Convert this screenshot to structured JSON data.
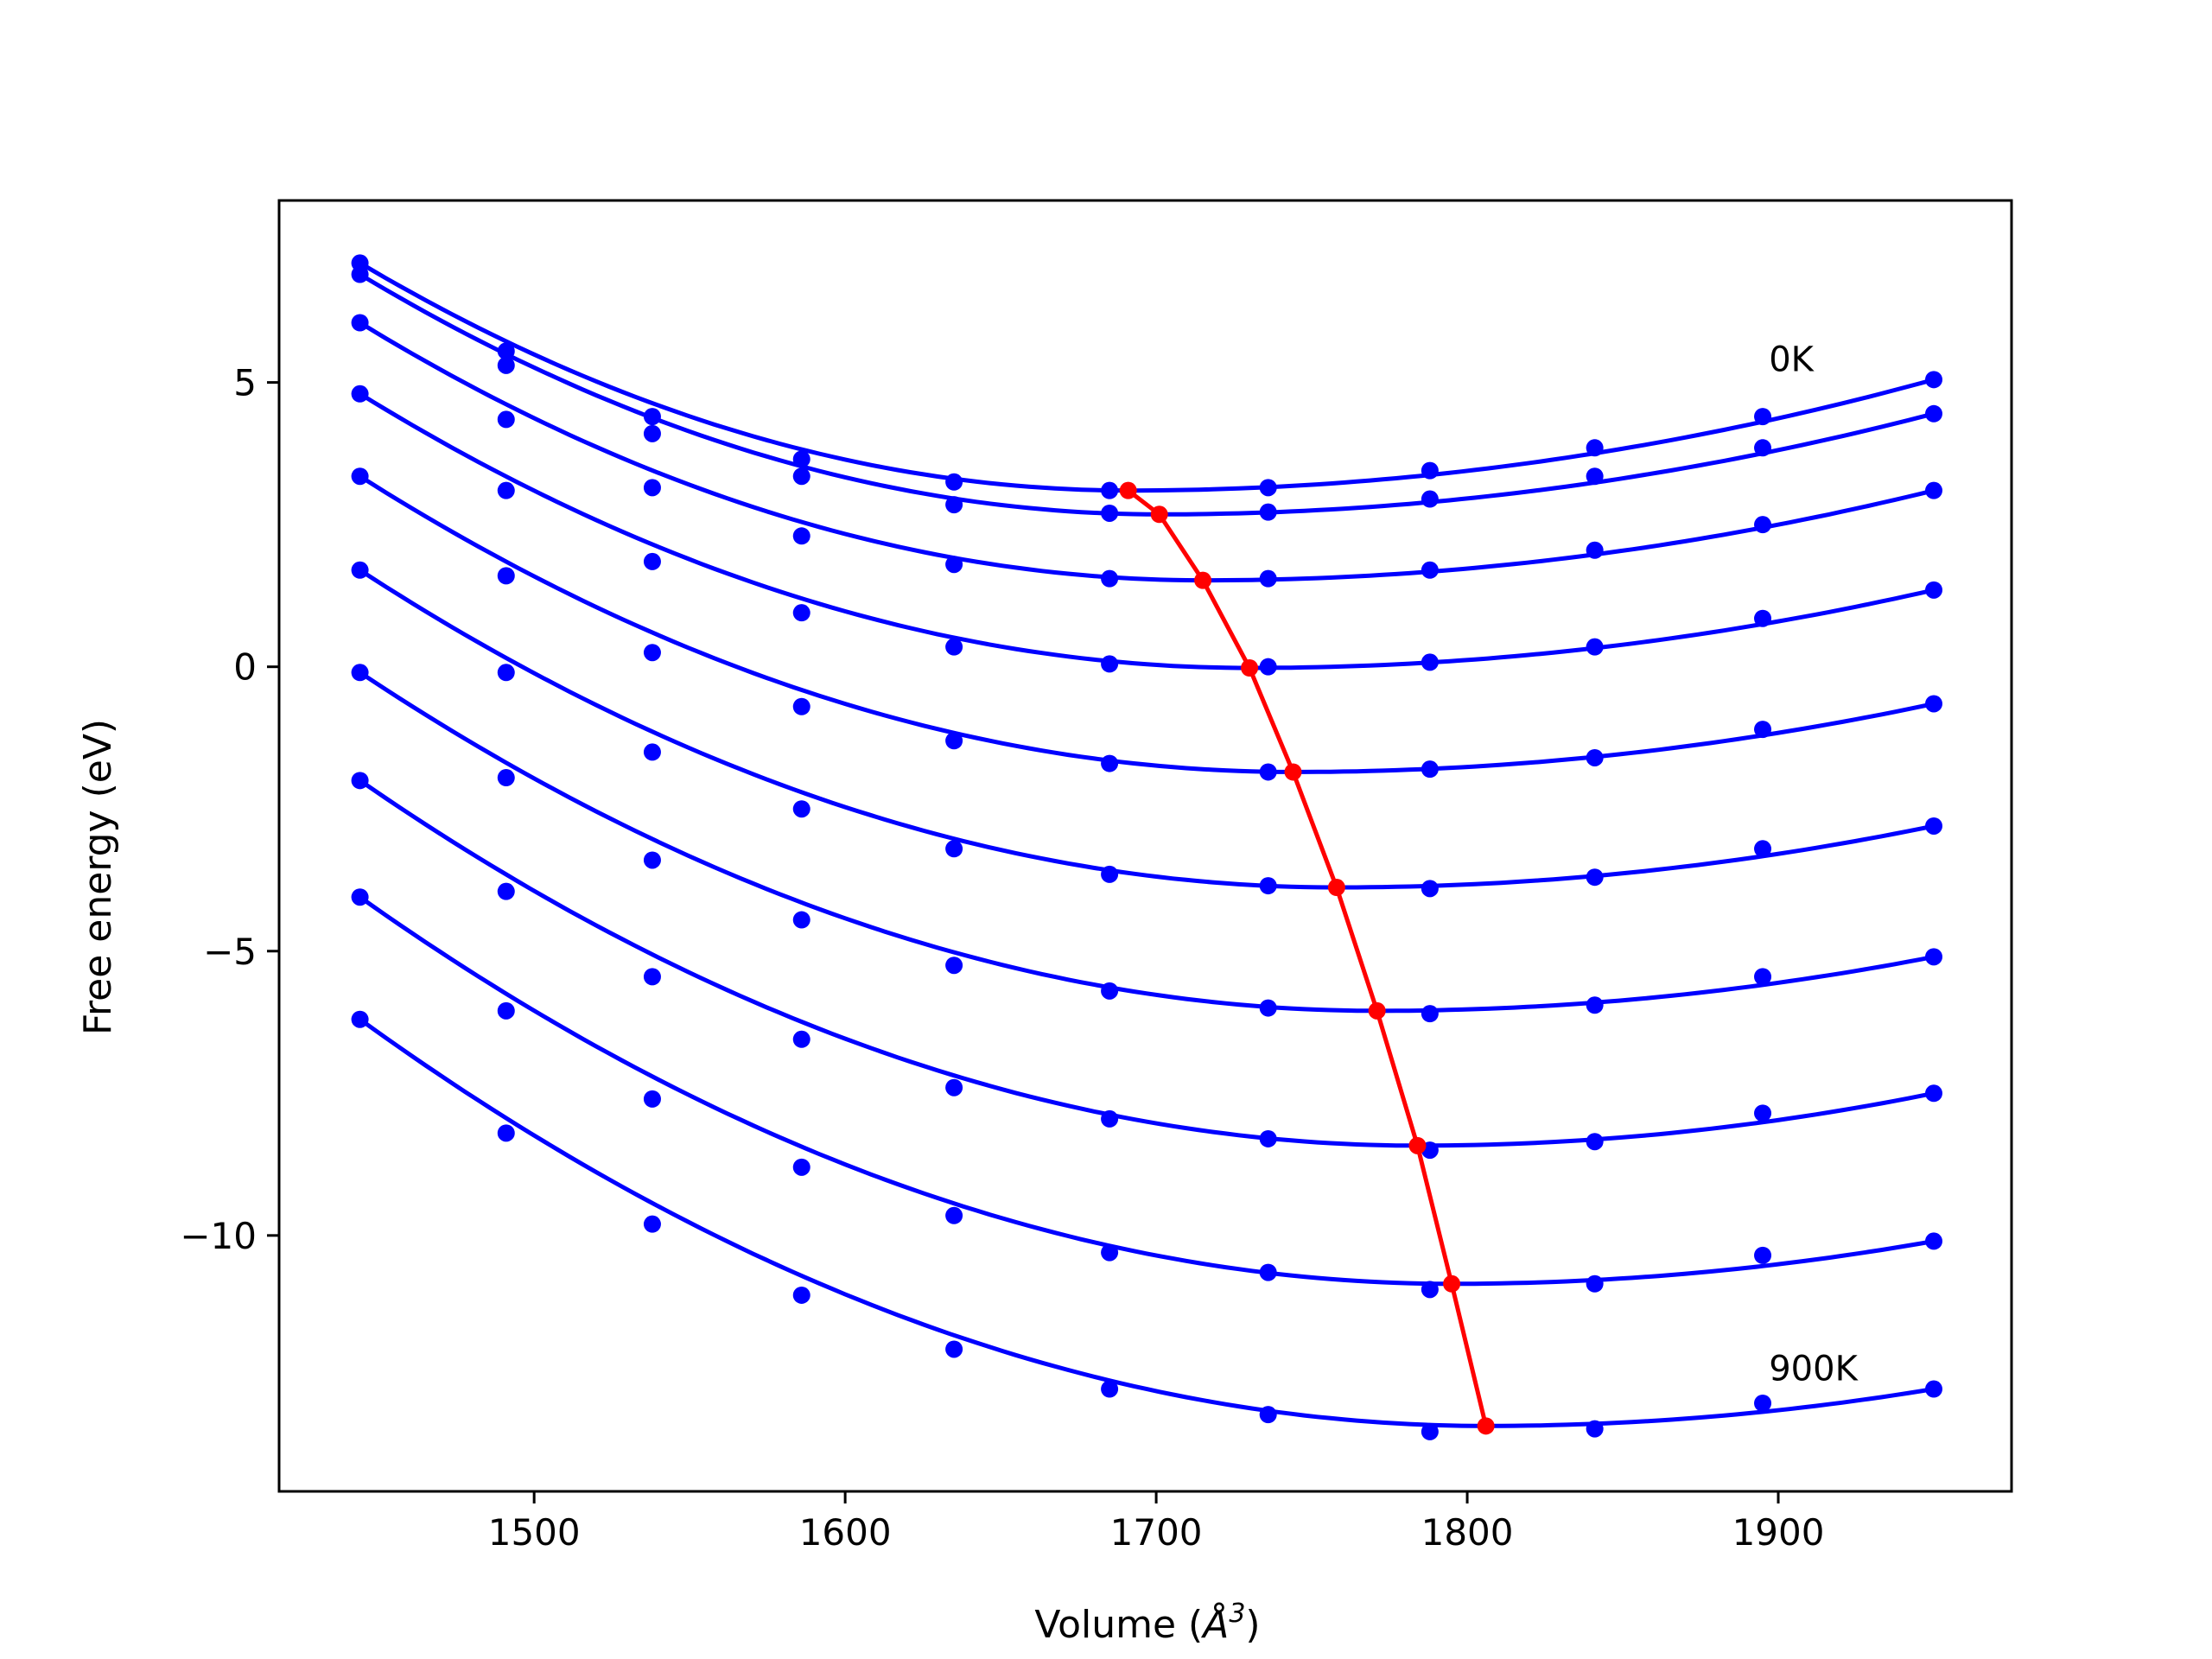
{
  "chart_data": {
    "type": "line",
    "xlabel_text": "Volume (",
    "xlabel_unit": "Å",
    "xlabel_exp": "3",
    "xlabel_close": ")",
    "ylabel": "Free energy (eV)",
    "xlim": [
      1418,
      1975
    ],
    "ylim": [
      -14.5,
      8.2
    ],
    "xticks": [
      1500,
      1600,
      1700,
      1800,
      1900
    ],
    "yticks": [
      5,
      0,
      -5,
      -10
    ],
    "ytick_labels": [
      "5",
      "0",
      "−5",
      "−10"
    ],
    "xtick_labels": [
      "1500",
      "1600",
      "1700",
      "1800",
      "1900"
    ],
    "x": [
      1444,
      1491,
      1538,
      1586,
      1635,
      1685,
      1736,
      1788,
      1841,
      1895,
      1950
    ],
    "series": [
      {
        "values": [
          7.1,
          5.55,
          4.4,
          3.65,
          3.25,
          3.1,
          3.15,
          3.45,
          3.85,
          4.4,
          5.05
        ],
        "min": [
          1691,
          3.1
        ]
      },
      {
        "values": [
          6.9,
          5.3,
          4.1,
          3.35,
          2.85,
          2.7,
          2.72,
          2.95,
          3.35,
          3.85,
          4.45
        ],
        "min": [
          1701,
          2.68
        ]
      },
      {
        "values": [
          6.05,
          4.35,
          3.15,
          2.3,
          1.8,
          1.55,
          1.55,
          1.7,
          2.05,
          2.5,
          3.1
        ],
        "min": [
          1715,
          1.52
        ]
      },
      {
        "values": [
          4.8,
          3.1,
          1.85,
          0.95,
          0.35,
          0.05,
          0.0,
          0.08,
          0.35,
          0.85,
          1.35
        ],
        "min": [
          1730,
          -0.02
        ]
      },
      {
        "values": [
          3.35,
          1.6,
          0.25,
          -0.7,
          -1.3,
          -1.7,
          -1.85,
          -1.8,
          -1.6,
          -1.1,
          -0.65
        ],
        "min": [
          1744,
          -1.85
        ]
      },
      {
        "values": [
          1.7,
          -0.1,
          -1.5,
          -2.5,
          -3.2,
          -3.65,
          -3.85,
          -3.9,
          -3.7,
          -3.2,
          -2.8
        ],
        "min": [
          1758,
          -3.88
        ]
      },
      {
        "values": [
          -0.1,
          -1.95,
          -3.4,
          -4.45,
          -5.25,
          -5.7,
          -6.0,
          -6.1,
          -5.95,
          -5.45,
          -5.1
        ],
        "min": [
          1771,
          -6.05
        ]
      },
      {
        "values": [
          -2.0,
          -3.95,
          -5.45,
          -6.55,
          -7.4,
          -7.95,
          -8.3,
          -8.5,
          -8.35,
          -7.85,
          -7.5
        ],
        "min": [
          1784,
          -8.42
        ]
      },
      {
        "values": [
          -4.05,
          -6.05,
          -7.6,
          -8.8,
          -9.65,
          -10.3,
          -10.65,
          -10.95,
          -10.85,
          -10.35,
          -10.1
        ],
        "min": [
          1795,
          -10.85
        ]
      },
      {
        "values": [
          -6.2,
          -8.2,
          -9.8,
          -11.05,
          -12.0,
          -12.7,
          -13.15,
          -13.45,
          -13.4,
          -12.95,
          -12.7
        ],
        "min": [
          1806,
          -13.35
        ]
      }
    ],
    "min_curve_color": "#ff0000",
    "series_color": "#0000ff",
    "annotations": [
      {
        "text": "0K",
        "x": 1897,
        "y": 5.2
      },
      {
        "text": "900K",
        "x": 1897,
        "y": -12.55
      }
    ]
  }
}
